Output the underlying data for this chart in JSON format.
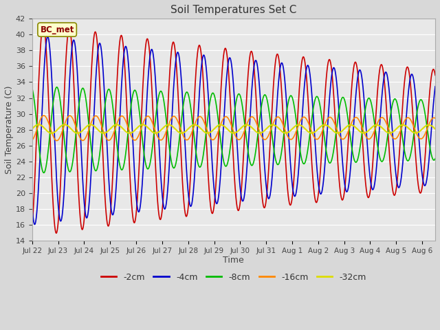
{
  "title": "Soil Temperatures Set C",
  "xlabel": "Time",
  "ylabel": "Soil Temperature (C)",
  "ylim": [
    14,
    42
  ],
  "bg_color": "#d8d8d8",
  "plot_bg_color": "#e8e8e8",
  "series": [
    {
      "label": "-2cm",
      "color": "#cc0000",
      "linewidth": 1.2
    },
    {
      "label": "-4cm",
      "color": "#0000cc",
      "linewidth": 1.2
    },
    {
      "label": "-8cm",
      "color": "#00bb00",
      "linewidth": 1.2
    },
    {
      "label": "-16cm",
      "color": "#ff8800",
      "linewidth": 1.2
    },
    {
      "label": "-32cm",
      "color": "#dddd00",
      "linewidth": 1.5
    }
  ],
  "annotation_text": "BC_met",
  "annotation_color": "#8b0000",
  "num_days": 15.5,
  "tick_labels": [
    "Jul 22",
    "Jul 23",
    "Jul 24",
    "Jul 25",
    "Jul 26",
    "Jul 27",
    "Jul 28",
    "Jul 29",
    "Jul 30",
    "Jul 31",
    "Aug 1",
    "Aug 2",
    "Aug 3",
    "Aug 4",
    "Aug 5",
    "Aug 6"
  ],
  "depths_params": [
    {
      "mean": 28.0,
      "amp": 13.5,
      "decay": 0.0015,
      "lag": 0.18,
      "mean_slope": -0.12
    },
    {
      "mean": 28.0,
      "amp": 12.0,
      "decay": 0.0015,
      "lag": 0.35,
      "mean_slope": -0.1
    },
    {
      "mean": 28.0,
      "amp": 5.5,
      "decay": 0.001,
      "lag": 0.7,
      "mean_slope": -0.05
    },
    {
      "mean": 28.2,
      "amp": 1.6,
      "decay": 0.0005,
      "lag": 1.2,
      "mean_slope": -0.02
    },
    {
      "mean": 28.1,
      "amp": 0.55,
      "decay": 0.0002,
      "lag": 2.0,
      "mean_slope": -0.01
    }
  ]
}
